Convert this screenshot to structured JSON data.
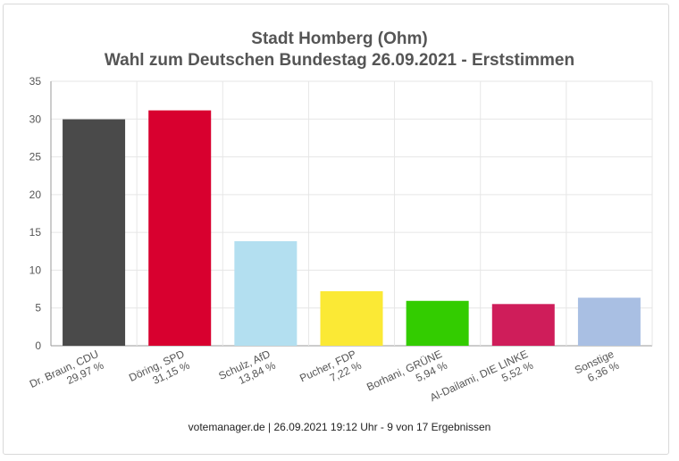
{
  "header": {
    "title": "Stadt Homberg (Ohm)",
    "subtitle": "Wahl zum Deutschen Bundestag 26.09.2021  - Erststimmen"
  },
  "footer": {
    "text": "votemanager.de | 26.09.2021 19:12 Uhr - 9 von 17 Ergebnissen"
  },
  "chart_data": {
    "type": "bar",
    "title": "Stadt Homberg (Ohm)",
    "subtitle": "Wahl zum Deutschen Bundestag 26.09.2021  - Erststimmen",
    "categories": [
      "Dr. Braun, CDU",
      "Döring, SPD",
      "Schulz, AfD",
      "Pucher, FDP",
      "Borhani, GRÜNE",
      "Al-Dailami, DIE LINKE",
      "Sonstige"
    ],
    "value_labels": [
      "29,97 %",
      "31,15 %",
      "13,84 %",
      "7,22 %",
      "5,94 %",
      "5,52 %",
      "6,36 %"
    ],
    "values": [
      29.97,
      31.15,
      13.84,
      7.22,
      5.94,
      5.52,
      6.36
    ],
    "colors": [
      "#4a4a4a",
      "#d8002f",
      "#b3dff0",
      "#fbe935",
      "#33cc00",
      "#cf1d5a",
      "#a9bfe3"
    ],
    "ylim": [
      0,
      35
    ],
    "yticks": [
      0,
      5,
      10,
      15,
      20,
      25,
      30,
      35
    ],
    "xlabel": "",
    "ylabel": "",
    "grid": true,
    "legend": "none"
  }
}
